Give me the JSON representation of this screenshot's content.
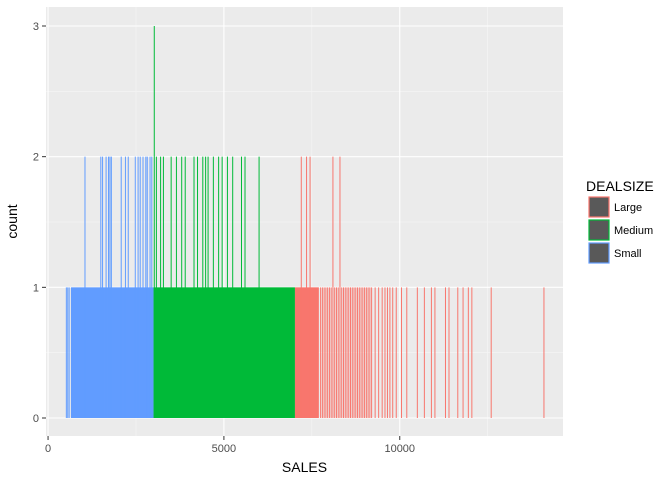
{
  "chart_data": {
    "type": "histogram",
    "xlabel": "SALES",
    "ylabel": "count",
    "xlim": [
      0,
      14500
    ],
    "ylim": [
      0,
      3
    ],
    "x_ticks": [
      0,
      5000,
      10000
    ],
    "x_tick_labels": [
      "0",
      "5000",
      "10000"
    ],
    "y_ticks": [
      0,
      1,
      2,
      3
    ],
    "y_tick_labels": [
      "0",
      "1",
      "2",
      "3"
    ],
    "grid": true,
    "legend": {
      "title": "DEALSIZE",
      "placement": "right",
      "entries": [
        "Large",
        "Medium",
        "Small"
      ]
    },
    "series": [
      {
        "name": "Small",
        "color": "#619CFF",
        "dense_range": [
          650,
          3000
        ],
        "dense_count": 1,
        "spikes": [
          {
            "x": 520,
            "count": 1
          },
          {
            "x": 560,
            "count": 1
          },
          {
            "x": 600,
            "count": 1
          },
          {
            "x": 1050,
            "count": 2
          },
          {
            "x": 1500,
            "count": 2
          },
          {
            "x": 1550,
            "count": 2
          },
          {
            "x": 1650,
            "count": 2
          },
          {
            "x": 1720,
            "count": 2
          },
          {
            "x": 1760,
            "count": 2
          },
          {
            "x": 1800,
            "count": 2
          },
          {
            "x": 2080,
            "count": 2
          },
          {
            "x": 2200,
            "count": 2
          },
          {
            "x": 2280,
            "count": 2
          },
          {
            "x": 2480,
            "count": 2
          },
          {
            "x": 2560,
            "count": 2
          },
          {
            "x": 2620,
            "count": 2
          },
          {
            "x": 2700,
            "count": 2
          },
          {
            "x": 2780,
            "count": 2
          },
          {
            "x": 2820,
            "count": 2
          },
          {
            "x": 2900,
            "count": 2
          },
          {
            "x": 2950,
            "count": 2
          }
        ]
      },
      {
        "name": "Medium",
        "color": "#00BA38",
        "dense_range": [
          3000,
          7020
        ],
        "dense_count": 1,
        "spikes": [
          {
            "x": 3020,
            "count": 3
          },
          {
            "x": 3080,
            "count": 2
          },
          {
            "x": 3200,
            "count": 2
          },
          {
            "x": 3280,
            "count": 2
          },
          {
            "x": 3500,
            "count": 2
          },
          {
            "x": 3650,
            "count": 2
          },
          {
            "x": 3800,
            "count": 2
          },
          {
            "x": 3900,
            "count": 2
          },
          {
            "x": 4150,
            "count": 2
          },
          {
            "x": 4250,
            "count": 2
          },
          {
            "x": 4400,
            "count": 2
          },
          {
            "x": 4480,
            "count": 2
          },
          {
            "x": 4550,
            "count": 2
          },
          {
            "x": 4700,
            "count": 2
          },
          {
            "x": 4850,
            "count": 2
          },
          {
            "x": 4950,
            "count": 2
          },
          {
            "x": 5100,
            "count": 2
          },
          {
            "x": 5250,
            "count": 2
          },
          {
            "x": 5500,
            "count": 2
          },
          {
            "x": 5600,
            "count": 2
          },
          {
            "x": 6000,
            "count": 2
          }
        ]
      },
      {
        "name": "Large",
        "color": "#F8766D",
        "dense_range": [
          7020,
          7700
        ],
        "dense_count": 1,
        "spikes": [
          {
            "x": 7200,
            "count": 2
          },
          {
            "x": 7350,
            "count": 2
          },
          {
            "x": 7450,
            "count": 2
          },
          {
            "x": 8100,
            "count": 2
          },
          {
            "x": 8300,
            "count": 2
          },
          {
            "x": 7750,
            "count": 1
          },
          {
            "x": 7800,
            "count": 1
          },
          {
            "x": 7850,
            "count": 1
          },
          {
            "x": 7900,
            "count": 1
          },
          {
            "x": 7950,
            "count": 1
          },
          {
            "x": 8000,
            "count": 1
          },
          {
            "x": 8050,
            "count": 1
          },
          {
            "x": 8150,
            "count": 1
          },
          {
            "x": 8200,
            "count": 1
          },
          {
            "x": 8250,
            "count": 1
          },
          {
            "x": 8350,
            "count": 1
          },
          {
            "x": 8400,
            "count": 1
          },
          {
            "x": 8450,
            "count": 1
          },
          {
            "x": 8500,
            "count": 1
          },
          {
            "x": 8550,
            "count": 1
          },
          {
            "x": 8600,
            "count": 1
          },
          {
            "x": 8650,
            "count": 1
          },
          {
            "x": 8700,
            "count": 1
          },
          {
            "x": 8750,
            "count": 1
          },
          {
            "x": 8800,
            "count": 1
          },
          {
            "x": 8850,
            "count": 1
          },
          {
            "x": 8900,
            "count": 1
          },
          {
            "x": 8950,
            "count": 1
          },
          {
            "x": 9000,
            "count": 1
          },
          {
            "x": 9050,
            "count": 1
          },
          {
            "x": 9100,
            "count": 1
          },
          {
            "x": 9150,
            "count": 1
          },
          {
            "x": 9200,
            "count": 1
          },
          {
            "x": 9300,
            "count": 1
          },
          {
            "x": 9400,
            "count": 1
          },
          {
            "x": 9500,
            "count": 1
          },
          {
            "x": 9580,
            "count": 1
          },
          {
            "x": 9650,
            "count": 1
          },
          {
            "x": 9720,
            "count": 1
          },
          {
            "x": 9800,
            "count": 1
          },
          {
            "x": 9900,
            "count": 1
          },
          {
            "x": 10050,
            "count": 1
          },
          {
            "x": 10200,
            "count": 1
          },
          {
            "x": 10500,
            "count": 1
          },
          {
            "x": 10700,
            "count": 1
          },
          {
            "x": 10900,
            "count": 1
          },
          {
            "x": 11000,
            "count": 1
          },
          {
            "x": 11300,
            "count": 1
          },
          {
            "x": 11400,
            "count": 1
          },
          {
            "x": 11650,
            "count": 1
          },
          {
            "x": 11800,
            "count": 1
          },
          {
            "x": 11950,
            "count": 1
          },
          {
            "x": 12050,
            "count": 1
          },
          {
            "x": 12600,
            "count": 1
          },
          {
            "x": 14100,
            "count": 1
          }
        ]
      }
    ]
  }
}
